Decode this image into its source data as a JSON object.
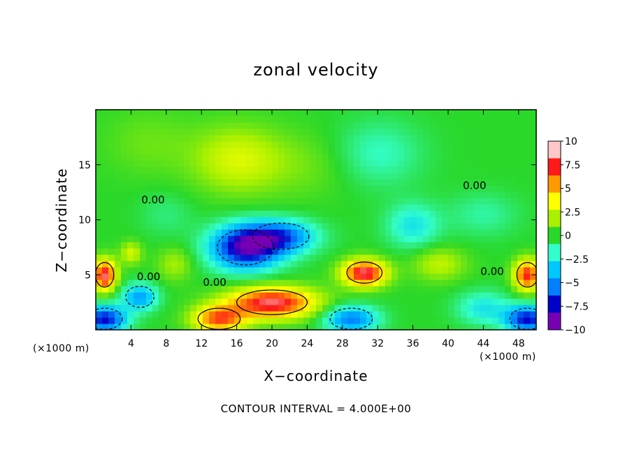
{
  "chart_data": {
    "type": "heatmap",
    "title": "zonal velocity",
    "xlabel": "X−coordinate",
    "ylabel": "Z−coordinate",
    "x_unit_label": "(×1000 m)",
    "footnote": "CONTOUR INTERVAL = 4.000E+00",
    "xlim": [
      0,
      50
    ],
    "ylim": [
      0,
      20
    ],
    "x_ticks": [
      4,
      8,
      12,
      16,
      20,
      24,
      28,
      32,
      36,
      40,
      44,
      48
    ],
    "y_ticks": [
      5,
      10,
      15
    ],
    "zlim": [
      -10,
      10
    ],
    "colorbar_ticks": [
      10,
      7.5,
      5,
      2.5,
      0,
      -2.5,
      -5,
      -7.5,
      -10
    ],
    "colorbar_labels": [
      "10",
      "7.5",
      "5",
      "2.5",
      "0",
      "−2.5",
      "−5",
      "−7.5",
      "−10"
    ],
    "colorbar_colors": [
      "#ffc8c8",
      "#ff1a1a",
      "#ff9900",
      "#ffff00",
      "#aaf000",
      "#2ad82a",
      "#33ffcc",
      "#00c8ff",
      "#0080ff",
      "#0000c8",
      "#7800b4"
    ],
    "contour_label": "0.00",
    "grid": false,
    "features": [
      {
        "x": 16,
        "z": 15.5,
        "value": 3,
        "sx": 5,
        "sz": 3
      },
      {
        "x": 24,
        "z": 15,
        "value": 1,
        "sx": 6,
        "sz": 3
      },
      {
        "x": 6,
        "z": 17,
        "value": 1,
        "sx": 5,
        "sz": 3
      },
      {
        "x": 32,
        "z": 16,
        "value": -2,
        "sx": 5,
        "sz": 3
      },
      {
        "x": 17,
        "z": 7.5,
        "value": -9,
        "sx": 4,
        "sz": 2
      },
      {
        "x": 21,
        "z": 8.5,
        "value": -6,
        "sx": 4,
        "sz": 1.5
      },
      {
        "x": 20,
        "z": 2.5,
        "value": 9,
        "sx": 5,
        "sz": 1.4
      },
      {
        "x": 14,
        "z": 1,
        "value": 7,
        "sx": 3,
        "sz": 1.2
      },
      {
        "x": 30.5,
        "z": 5.2,
        "value": 9,
        "sx": 2.5,
        "sz": 1.2
      },
      {
        "x": 1,
        "z": 5,
        "value": 9,
        "sx": 1.3,
        "sz": 1.4
      },
      {
        "x": 49,
        "z": 5,
        "value": 8,
        "sx": 1.5,
        "sz": 1.4
      },
      {
        "x": 1,
        "z": 1,
        "value": -8,
        "sx": 2.5,
        "sz": 1.2
      },
      {
        "x": 49,
        "z": 1,
        "value": -8,
        "sx": 2.5,
        "sz": 1.2
      },
      {
        "x": 29,
        "z": 1,
        "value": -6,
        "sx": 3,
        "sz": 1.2
      },
      {
        "x": 5,
        "z": 3,
        "value": -5,
        "sx": 2,
        "sz": 1.2
      },
      {
        "x": 44,
        "z": 2,
        "value": -3,
        "sx": 3,
        "sz": 1.5
      },
      {
        "x": 39,
        "z": 6,
        "value": 2.5,
        "sx": 3,
        "sz": 1.5
      },
      {
        "x": 36,
        "z": 9.5,
        "value": -3,
        "sx": 3,
        "sz": 2
      },
      {
        "x": 44,
        "z": 10.5,
        "value": -1.5,
        "sx": 4,
        "sz": 2
      },
      {
        "x": 9,
        "z": 6,
        "value": 2,
        "sx": 2,
        "sz": 1.5
      },
      {
        "x": 4,
        "z": 7,
        "value": 3,
        "sx": 1.2,
        "sz": 1
      },
      {
        "x": 8,
        "z": 10.5,
        "value": -1,
        "sx": 3,
        "sz": 2
      }
    ]
  }
}
